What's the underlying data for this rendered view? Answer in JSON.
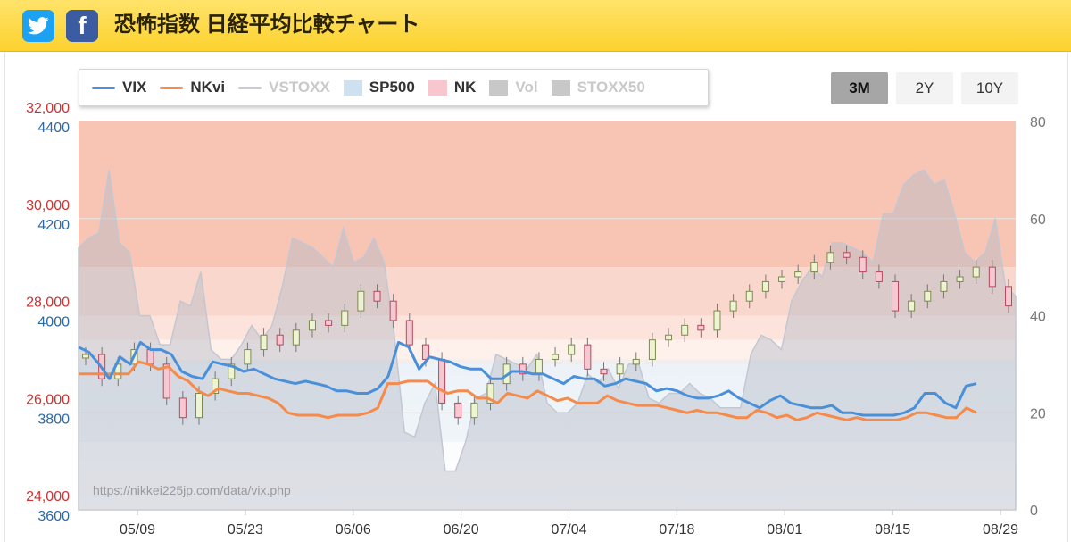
{
  "header": {
    "title": "恐怖指数 日経平均比較チャート",
    "share_twitter_icon": "twitter-bird-icon",
    "share_facebook_icon": "facebook-f-icon",
    "facebook_glyph": "f"
  },
  "legend": [
    {
      "label": "VIX",
      "kind": "line",
      "color": "#4a90d9",
      "enabled": true
    },
    {
      "label": "NKvi",
      "kind": "line",
      "color": "#f58a4b",
      "enabled": true
    },
    {
      "label": "VSTOXX",
      "kind": "line",
      "color": "#c9cdd3",
      "enabled": false
    },
    {
      "label": "SP500",
      "kind": "box",
      "color": "#cfe0ef",
      "enabled": true
    },
    {
      "label": "NK",
      "kind": "box",
      "color": "#f8c6cf",
      "enabled": true
    },
    {
      "label": "Vol",
      "kind": "box",
      "color": "#c8c8c8",
      "enabled": false
    },
    {
      "label": "STOXX50",
      "kind": "box",
      "color": "#c8c8c8",
      "enabled": false
    }
  ],
  "range_buttons": [
    {
      "label": "3M",
      "active": true
    },
    {
      "label": "2Y",
      "active": false
    },
    {
      "label": "10Y",
      "active": false
    }
  ],
  "credit": "https://nikkei225jp.com/data/vix.php",
  "chart_data": {
    "type": "line",
    "x_labels": [
      "05/09",
      "05/23",
      "06/06",
      "06/20",
      "07/04",
      "07/18",
      "08/01",
      "08/15",
      "08/29"
    ],
    "axes": {
      "nk_left": {
        "ticks": [
          "32,000",
          "30,000",
          "28,000",
          "26,000",
          "24,000"
        ],
        "range": [
          24000,
          32000
        ],
        "color": "#cc3333"
      },
      "sp500_left": {
        "ticks": [
          "4400",
          "4200",
          "4000",
          "3800",
          "3600"
        ],
        "range": [
          3600,
          4400
        ],
        "color": "#2c69a8"
      },
      "vol_right": {
        "ticks": [
          "80",
          "60",
          "40",
          "20",
          "0"
        ],
        "range": [
          0,
          80
        ],
        "color": "#777777"
      }
    },
    "zones": [
      {
        "from": 50,
        "to": 80,
        "color": "#f8c5b5"
      },
      {
        "from": 40,
        "to": 50,
        "color": "#fad7cd"
      },
      {
        "from": 35,
        "to": 40,
        "color": "#fce4dc"
      },
      {
        "from": 30,
        "to": 35,
        "color": "#fef1ec"
      }
    ],
    "series": [
      {
        "name": "VIX",
        "color": "#4a90d9",
        "values": [
          33.5,
          32.5,
          30.0,
          27.0,
          31.5,
          30.0,
          34.5,
          33.0,
          33.0,
          32.0,
          28.5,
          27.5,
          27.0,
          30.5,
          30.0,
          29.5,
          28.5,
          29.0,
          28.0,
          27.0,
          26.5,
          26.0,
          26.5,
          26.0,
          25.5,
          24.5,
          24.5,
          24.0,
          24.0,
          25.0,
          27.5,
          34.5,
          33.5,
          29.0,
          31.5,
          31.0,
          30.5,
          29.5,
          29.0,
          29.0,
          27.0,
          27.0,
          28.5,
          28.5,
          28.0,
          28.0,
          27.0,
          26.0,
          27.5,
          27.0,
          27.0,
          25.5,
          26.0,
          27.0,
          26.5,
          26.0,
          24.5,
          25.0,
          24.5,
          23.5,
          23.0,
          23.0,
          23.5,
          24.5,
          23.0,
          22.0,
          21.0,
          22.5,
          23.5,
          22.0,
          21.5,
          21.0,
          21.0,
          21.5,
          20.0,
          20.0,
          19.5,
          19.5,
          19.5,
          19.5,
          20.0,
          21.0,
          24.0,
          24.0,
          22.0,
          21.0,
          25.5,
          26.0
        ]
      },
      {
        "name": "NKvi",
        "color": "#f58a4b",
        "values": [
          28.0,
          28.0,
          28.0,
          28.0,
          28.0,
          28.0,
          30.5,
          30.0,
          29.0,
          29.5,
          27.5,
          26.5,
          24.5,
          23.5,
          25.0,
          24.5,
          24.0,
          24.0,
          23.5,
          23.0,
          22.0,
          20.0,
          19.5,
          19.5,
          19.5,
          19.0,
          19.5,
          19.5,
          19.5,
          20.0,
          21.0,
          26.0,
          26.0,
          26.5,
          26.5,
          26.5,
          25.0,
          24.0,
          24.5,
          24.5,
          23.0,
          23.0,
          22.0,
          24.0,
          23.5,
          23.0,
          24.5,
          23.5,
          22.5,
          23.0,
          22.0,
          22.0,
          22.0,
          23.5,
          22.5,
          22.0,
          21.5,
          21.5,
          21.5,
          21.0,
          20.5,
          20.0,
          20.5,
          20.0,
          20.0,
          19.5,
          19.0,
          19.0,
          20.5,
          20.0,
          19.0,
          19.5,
          18.5,
          19.0,
          20.0,
          19.5,
          19.0,
          18.5,
          19.0,
          18.5,
          18.5,
          18.5,
          18.5,
          19.0,
          20.0,
          20.0,
          19.5,
          19.0,
          19.0,
          21.0,
          20.0
        ]
      },
      {
        "name": "Vol",
        "color": "#bcbcc8",
        "values": [
          54,
          56,
          57,
          70,
          55,
          53,
          40,
          40,
          34,
          34,
          43,
          42,
          49,
          33,
          31,
          31,
          34,
          38,
          35,
          38,
          46,
          56,
          55,
          54,
          52,
          50,
          58,
          51,
          52,
          56,
          51,
          36,
          16,
          15,
          22,
          26,
          8,
          8,
          14,
          23,
          24,
          32,
          31,
          30,
          29,
          32,
          22,
          20,
          20,
          22,
          28,
          26,
          29,
          25,
          30,
          30,
          23,
          22,
          24,
          24,
          26,
          24,
          23,
          21,
          21,
          21,
          32,
          36,
          35,
          33,
          43,
          47,
          50,
          48,
          55,
          55,
          54,
          53,
          51,
          61,
          61,
          67,
          69,
          70,
          67,
          68,
          61,
          53,
          51,
          53,
          60,
          46,
          44
        ]
      }
    ],
    "nk_candles": [
      27200,
      26700,
      27000,
      27300,
      27000,
      26300,
      25900,
      26400,
      26700,
      27000,
      27300,
      27600,
      27400,
      27700,
      27900,
      27800,
      28100,
      28500,
      28300,
      27900,
      27400,
      27100,
      26200,
      25900,
      26200,
      26600,
      27000,
      26800,
      27100,
      27200,
      27400,
      26900,
      26800,
      27000,
      27100,
      27500,
      27600,
      27800,
      27700,
      28100,
      28300,
      28500,
      28700,
      28800,
      28900,
      29100,
      29300,
      29200,
      28900,
      28700,
      28100,
      28300,
      28500,
      28700,
      28800,
      29000,
      28600,
      28200
    ]
  }
}
